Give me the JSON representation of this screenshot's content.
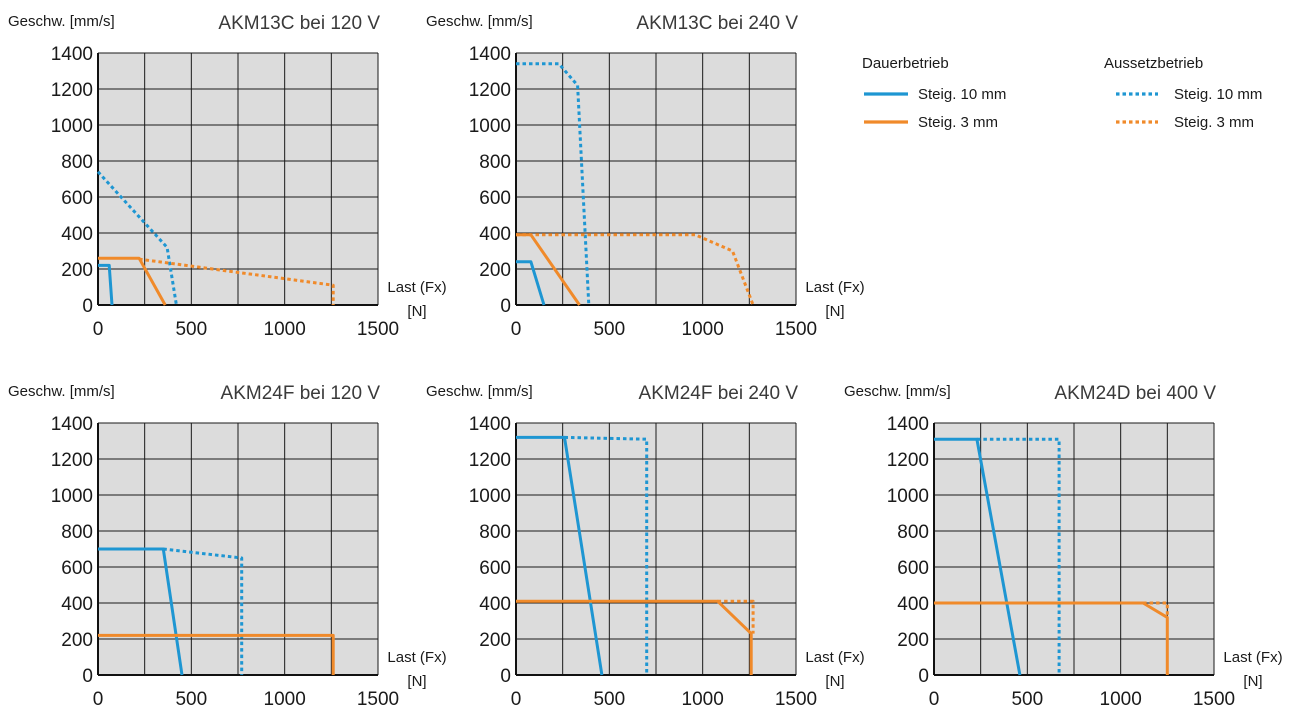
{
  "colors": {
    "blue": "#1e96d2",
    "orange": "#f08a2a",
    "plot_bg": "#dcdcdc",
    "grid": "#1a1a1a"
  },
  "legend": {
    "continuous": {
      "label": "Dauerbetrieb",
      "items": [
        {
          "label": "Steig. 10 mm",
          "color": "#1e96d2"
        },
        {
          "label": "Steig. 3 mm",
          "color": "#f08a2a"
        }
      ]
    },
    "intermittent": {
      "label": "Aussetzbetrieb",
      "items": [
        {
          "label": "Steig. 10 mm",
          "color": "#1e96d2"
        },
        {
          "label": "Steig. 3 mm",
          "color": "#f08a2a"
        }
      ]
    }
  },
  "chart_data": [
    {
      "type": "line",
      "title": "AKM13C bei 120 V",
      "ylabel": "Geschw. [mm/s]",
      "xlabel": [
        "Last (Fx)",
        "[N]"
      ],
      "xlim": [
        0,
        1500
      ],
      "ylim": [
        0,
        1400
      ],
      "xticks": [
        "0",
        "500",
        "1000",
        "1500"
      ],
      "yticks": [
        "0",
        "200",
        "400",
        "600",
        "800",
        "1000",
        "1200",
        "1400"
      ],
      "grid": true,
      "series": [
        {
          "mode": "Aussetzbetrieb",
          "pitch": "Steig. 10 mm",
          "color": "#1e96d2",
          "dashed": true,
          "points": [
            [
              0,
              740
            ],
            [
              370,
              320
            ],
            [
              420,
              0
            ]
          ]
        },
        {
          "mode": "Aussetzbetrieb",
          "pitch": "Steig. 3 mm",
          "color": "#f08a2a",
          "dashed": true,
          "points": [
            [
              220,
              255
            ],
            [
              1260,
              110
            ],
            [
              1260,
              0
            ]
          ]
        },
        {
          "mode": "Dauerbetrieb",
          "pitch": "Steig. 10 mm",
          "color": "#1e96d2",
          "dashed": false,
          "points": [
            [
              0,
              220
            ],
            [
              60,
              220
            ],
            [
              75,
              0
            ]
          ]
        },
        {
          "mode": "Dauerbetrieb",
          "pitch": "Steig. 3 mm",
          "color": "#f08a2a",
          "dashed": false,
          "points": [
            [
              0,
              260
            ],
            [
              220,
              260
            ],
            [
              360,
              0
            ]
          ]
        }
      ]
    },
    {
      "type": "line",
      "title": "AKM13C bei 240 V",
      "ylabel": "Geschw. [mm/s]",
      "xlabel": [
        "Last (Fx)",
        "[N]"
      ],
      "xlim": [
        0,
        1500
      ],
      "ylim": [
        0,
        1400
      ],
      "xticks": [
        "0",
        "500",
        "1000",
        "1500"
      ],
      "yticks": [
        "0",
        "200",
        "400",
        "600",
        "800",
        "1000",
        "1200",
        "1400"
      ],
      "grid": true,
      "series": [
        {
          "mode": "Aussetzbetrieb",
          "pitch": "Steig. 10 mm",
          "color": "#1e96d2",
          "dashed": true,
          "points": [
            [
              0,
              1340
            ],
            [
              230,
              1340
            ],
            [
              330,
              1220
            ],
            [
              390,
              0
            ]
          ]
        },
        {
          "mode": "Aussetzbetrieb",
          "pitch": "Steig. 3 mm",
          "color": "#f08a2a",
          "dashed": true,
          "points": [
            [
              0,
              390
            ],
            [
              960,
              390
            ],
            [
              1160,
              300
            ],
            [
              1270,
              0
            ]
          ]
        },
        {
          "mode": "Dauerbetrieb",
          "pitch": "Steig. 10 mm",
          "color": "#1e96d2",
          "dashed": false,
          "points": [
            [
              0,
              240
            ],
            [
              80,
              240
            ],
            [
              150,
              0
            ]
          ]
        },
        {
          "mode": "Dauerbetrieb",
          "pitch": "Steig. 3 mm",
          "color": "#f08a2a",
          "dashed": false,
          "points": [
            [
              0,
              390
            ],
            [
              80,
              390
            ],
            [
              340,
              0
            ]
          ]
        }
      ]
    },
    {
      "type": "line",
      "title": "AKM24F bei 120 V",
      "ylabel": "Geschw. [mm/s]",
      "xlabel": [
        "Last (Fx)",
        "[N]"
      ],
      "xlim": [
        0,
        1500
      ],
      "ylim": [
        0,
        1400
      ],
      "xticks": [
        "0",
        "500",
        "1000",
        "1500"
      ],
      "yticks": [
        "0",
        "200",
        "400",
        "600",
        "800",
        "1000",
        "1200",
        "1400"
      ],
      "grid": true,
      "series": [
        {
          "mode": "Aussetzbetrieb",
          "pitch": "Steig. 10 mm",
          "color": "#1e96d2",
          "dashed": true,
          "points": [
            [
              350,
              700
            ],
            [
              770,
              650
            ],
            [
              770,
              0
            ]
          ]
        },
        {
          "mode": "Dauerbetrieb",
          "pitch": "Steig. 10 mm",
          "color": "#1e96d2",
          "dashed": false,
          "points": [
            [
              0,
              700
            ],
            [
              350,
              700
            ],
            [
              450,
              0
            ]
          ]
        },
        {
          "mode": "Dauerbetrieb",
          "pitch": "Steig. 3 mm",
          "color": "#f08a2a",
          "dashed": false,
          "points": [
            [
              0,
              220
            ],
            [
              1260,
              220
            ],
            [
              1260,
              0
            ]
          ]
        }
      ]
    },
    {
      "type": "line",
      "title": "AKM24F bei 240 V",
      "ylabel": "Geschw. [mm/s]",
      "xlabel": [
        "Last (Fx)",
        "[N]"
      ],
      "xlim": [
        0,
        1500
      ],
      "ylim": [
        0,
        1400
      ],
      "xticks": [
        "0",
        "500",
        "1000",
        "1500"
      ],
      "yticks": [
        "0",
        "200",
        "400",
        "600",
        "800",
        "1000",
        "1200",
        "1400"
      ],
      "grid": true,
      "series": [
        {
          "mode": "Aussetzbetrieb",
          "pitch": "Steig. 10 mm",
          "color": "#1e96d2",
          "dashed": true,
          "points": [
            [
              260,
              1320
            ],
            [
              700,
              1310
            ],
            [
              700,
              0
            ]
          ]
        },
        {
          "mode": "Aussetzbetrieb",
          "pitch": "Steig. 3 mm",
          "color": "#f08a2a",
          "dashed": true,
          "points": [
            [
              1080,
              410
            ],
            [
              1270,
              410
            ],
            [
              1270,
              230
            ]
          ]
        },
        {
          "mode": "Dauerbetrieb",
          "pitch": "Steig. 10 mm",
          "color": "#1e96d2",
          "dashed": false,
          "points": [
            [
              0,
              1320
            ],
            [
              260,
              1320
            ],
            [
              460,
              0
            ]
          ]
        },
        {
          "mode": "Dauerbetrieb",
          "pitch": "Steig. 3 mm",
          "color": "#f08a2a",
          "dashed": false,
          "points": [
            [
              0,
              410
            ],
            [
              1080,
              410
            ],
            [
              1260,
              230
            ],
            [
              1260,
              0
            ]
          ]
        }
      ]
    },
    {
      "type": "line",
      "title": "AKM24D bei 400 V",
      "ylabel": "Geschw. [mm/s]",
      "xlabel": [
        "Last (Fx)",
        "[N]"
      ],
      "xlim": [
        0,
        1500
      ],
      "ylim": [
        0,
        1400
      ],
      "xticks": [
        "0",
        "500",
        "1000",
        "1500"
      ],
      "yticks": [
        "0",
        "200",
        "400",
        "600",
        "800",
        "1000",
        "1200",
        "1400"
      ],
      "grid": true,
      "series": [
        {
          "mode": "Aussetzbetrieb",
          "pitch": "Steig. 10 mm",
          "color": "#1e96d2",
          "dashed": true,
          "points": [
            [
              230,
              1310
            ],
            [
              670,
              1310
            ],
            [
              670,
              0
            ]
          ]
        },
        {
          "mode": "Aussetzbetrieb",
          "pitch": "Steig. 3 mm",
          "color": "#f08a2a",
          "dashed": true,
          "points": [
            [
              1120,
              400
            ],
            [
              1250,
              400
            ],
            [
              1250,
              320
            ]
          ]
        },
        {
          "mode": "Dauerbetrieb",
          "pitch": "Steig. 10 mm",
          "color": "#1e96d2",
          "dashed": false,
          "points": [
            [
              0,
              1310
            ],
            [
              230,
              1310
            ],
            [
              460,
              0
            ]
          ]
        },
        {
          "mode": "Dauerbetrieb",
          "pitch": "Steig. 3 mm",
          "color": "#f08a2a",
          "dashed": false,
          "points": [
            [
              0,
              400
            ],
            [
              1120,
              400
            ],
            [
              1250,
              320
            ],
            [
              1250,
              0
            ]
          ]
        }
      ]
    }
  ]
}
